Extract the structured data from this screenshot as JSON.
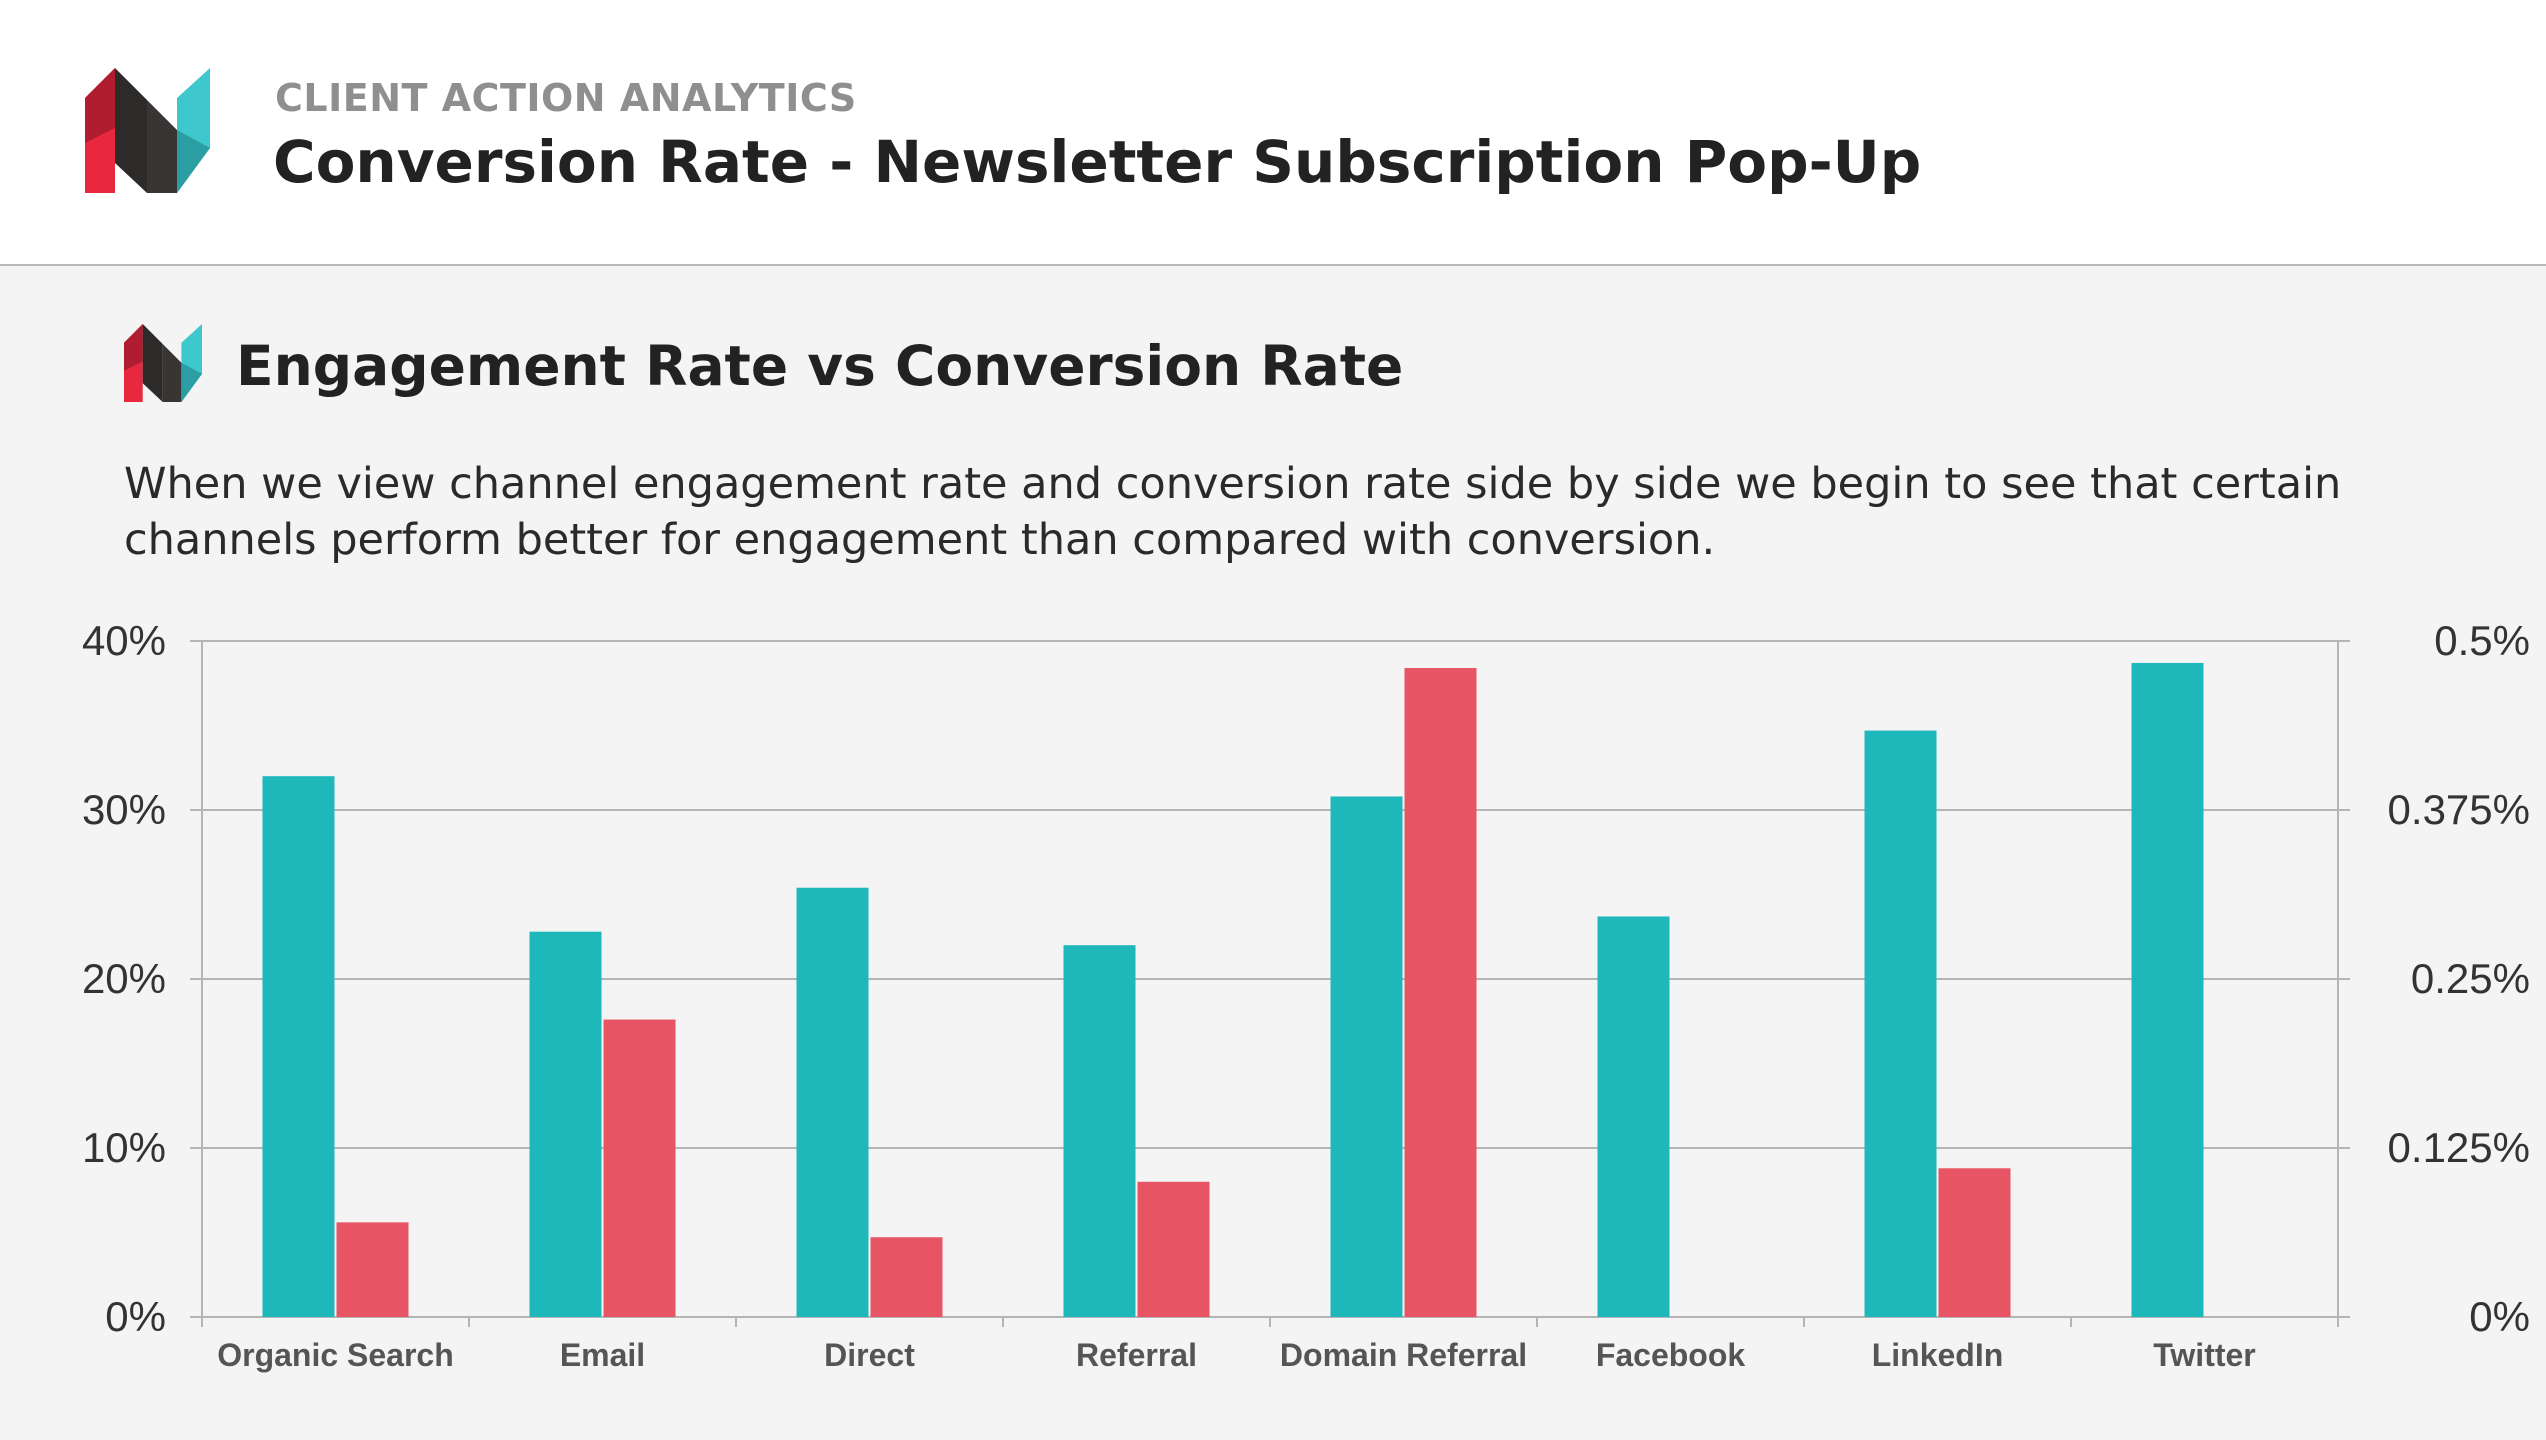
{
  "header": {
    "kicker": "CLIENT ACTION ANALYTICS",
    "title": "Conversion Rate - Newsletter Subscription Pop-Up",
    "logo_icon": "brand-logo-icon"
  },
  "section": {
    "title": "Engagement Rate vs Conversion Rate",
    "body": "When we view channel engagement rate and conversion rate side by side we begin to see that certain channels perform better for engagement than compared with conversion."
  },
  "colors": {
    "engagement": "#1eb8bb",
    "conversion": "#e75463",
    "logo_red": "#e8283f",
    "logo_dark": "#2d2a2a",
    "logo_teal": "#3ec7cc"
  },
  "chart_data": {
    "type": "bar",
    "categories": [
      "Organic Search",
      "Email",
      "Direct",
      "Referral",
      "Domain Referral",
      "Facebook",
      "LinkedIn",
      "Twitter"
    ],
    "series": [
      {
        "axis": "left",
        "color": "#1eb8bb",
        "values": [
          32,
          22.8,
          25.4,
          22,
          30.8,
          23.7,
          34.7,
          38.7
        ]
      },
      {
        "axis": "right",
        "color": "#e75463",
        "values": [
          0.07,
          0.22,
          0.059,
          0.1,
          0.48,
          0,
          0.11,
          0
        ]
      }
    ],
    "y_left": {
      "ylim": [
        0,
        40
      ],
      "ticks": [
        "0%",
        "10%",
        "20%",
        "30%",
        "40%"
      ],
      "tick_values": [
        0,
        10,
        20,
        30,
        40
      ]
    },
    "y_right": {
      "ylim": [
        0,
        0.5
      ],
      "ticks": [
        "0%",
        "0.125%",
        "0.25%",
        "0.375%",
        "0.5%"
      ],
      "tick_values": [
        0,
        0.125,
        0.25,
        0.375,
        0.5
      ]
    },
    "grid": true,
    "legend": "none"
  }
}
